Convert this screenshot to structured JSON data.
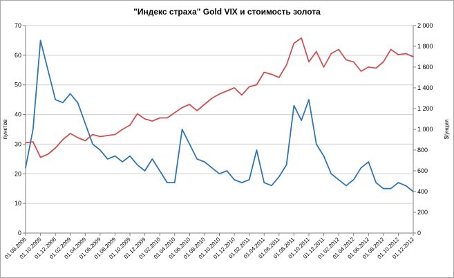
{
  "chart_data": {
    "type": "line",
    "title": "\"Индекс страха\" Gold VIX и стоимость золота",
    "legend": "none",
    "grid": "horizontal",
    "x_labels": [
      "01.08.2008",
      "01.10.2008",
      "01.12.2008",
      "01.02.2009",
      "01.04.2009",
      "01.06.2009",
      "01.08.2009",
      "01.10.2009",
      "01.12.2009",
      "01.02.2010",
      "01.04.2010",
      "01.06.2010",
      "01.08.2010",
      "01.10.2010",
      "01.12.2010",
      "01.02.2011",
      "01.04.2011",
      "01.06.2011",
      "01.08.2011",
      "01.10.2011",
      "01.12.2011",
      "01.02.2012",
      "01.04.2012",
      "01.06.2012",
      "01.08.2012",
      "01.10.2012",
      "01.12.2012"
    ],
    "x_points_per_label": 2,
    "left_axis": {
      "label": "пунктов",
      "min": 0,
      "max": 70,
      "ticks": [
        "0",
        "10",
        "20",
        "30",
        "40",
        "50",
        "60",
        "70"
      ]
    },
    "right_axis": {
      "label": "$/унция",
      "min": 0,
      "max": 2000,
      "ticks": [
        "0",
        "200",
        "400",
        "600",
        "800",
        "1 000",
        "1 200",
        "1 400",
        "1 600",
        "1 800",
        "2 000"
      ]
    },
    "series": [
      {
        "name": "Gold VIX",
        "axis": "left",
        "color": "#2e75b6",
        "values": [
          22,
          35,
          65,
          55,
          45,
          44,
          47,
          44,
          37,
          30,
          28,
          25,
          26,
          24,
          26,
          23,
          21,
          25,
          21,
          17,
          17,
          35,
          30,
          25,
          24,
          22,
          20,
          21,
          18,
          17,
          18,
          28,
          17,
          16,
          19,
          23,
          43,
          38,
          45,
          30,
          26,
          20,
          18,
          16,
          18,
          22,
          24,
          17,
          15,
          15,
          17,
          16,
          14
        ]
      },
      {
        "name": "стоимость золота",
        "axis": "right",
        "color": "#d05050",
        "values": [
          870,
          880,
          730,
          760,
          820,
          900,
          960,
          920,
          890,
          950,
          930,
          940,
          950,
          1000,
          1040,
          1150,
          1100,
          1080,
          1110,
          1110,
          1160,
          1210,
          1240,
          1180,
          1240,
          1300,
          1340,
          1370,
          1400,
          1330,
          1410,
          1430,
          1550,
          1530,
          1500,
          1620,
          1830,
          1880,
          1650,
          1750,
          1600,
          1730,
          1770,
          1670,
          1650,
          1560,
          1600,
          1590,
          1650,
          1770,
          1720,
          1730,
          1700
        ]
      }
    ],
    "colors": {
      "grid": "#cfcfcf",
      "axis": "#7f7f7f",
      "text": "#000000"
    }
  }
}
